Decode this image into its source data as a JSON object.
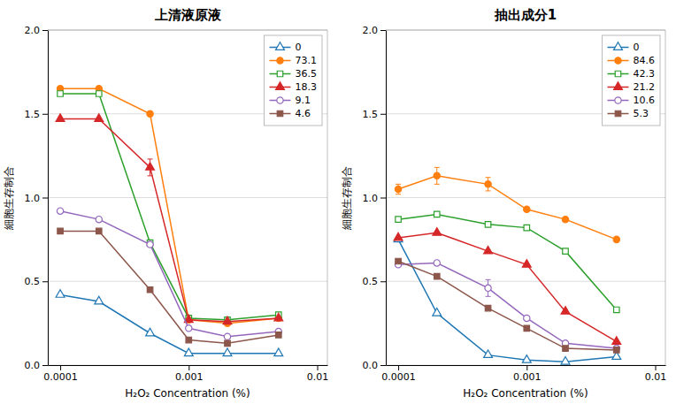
{
  "chart_data": [
    {
      "type": "line",
      "title": "上清液原液",
      "x_label": "H₂O₂ Concentration (%)",
      "y_label": "細胞生存制合",
      "x": [
        0.0001,
        0.0002,
        0.0005,
        0.001,
        0.002,
        0.005
      ],
      "series": [
        {
          "name": "0",
          "marker": "triangle-open",
          "values": [
            0.42,
            0.38,
            0.19,
            0.07,
            0.07,
            0.07
          ]
        },
        {
          "name": "73.1",
          "marker": "circle",
          "values": [
            1.65,
            1.65,
            1.5,
            0.27,
            0.25,
            0.28
          ]
        },
        {
          "name": "36.5",
          "marker": "square-open",
          "values": [
            1.62,
            1.62,
            0.73,
            0.28,
            0.27,
            0.3
          ]
        },
        {
          "name": "18.3",
          "marker": "triangle",
          "values": [
            1.47,
            1.47,
            1.18,
            0.27,
            0.26,
            0.28
          ],
          "errors": [
            0.0,
            0.0,
            0.05,
            0.0,
            0.0,
            0.0
          ]
        },
        {
          "name": "9.1",
          "marker": "circle-open",
          "values": [
            0.92,
            0.87,
            0.72,
            0.22,
            0.17,
            0.2
          ]
        },
        {
          "name": "4.6",
          "marker": "square",
          "values": [
            0.8,
            0.8,
            0.45,
            0.15,
            0.13,
            0.18
          ]
        }
      ],
      "log": "x",
      "xlim": [
        8e-05,
        0.012
      ],
      "xticks": [
        0.0001,
        0.001,
        0.01
      ],
      "ylim": [
        0,
        2
      ],
      "yticks": [
        {
          "value": 0,
          "label": "0.0"
        },
        0.5,
        {
          "value": 1,
          "label": "1.0"
        },
        1.5,
        {
          "value": 2,
          "label": "2.0"
        }
      ],
      "grid": true,
      "legend": "upper right"
    },
    {
      "type": "line",
      "title": "抽出成分1",
      "x_label": "H₂O₂ Concentration (%)",
      "y_label": "細胞生存制合",
      "x": [
        0.0001,
        0.0002,
        0.0005,
        0.001,
        0.002,
        0.005
      ],
      "series": [
        {
          "name": "0",
          "marker": "triangle-open",
          "values": [
            0.75,
            0.31,
            0.06,
            0.03,
            0.02,
            0.05
          ]
        },
        {
          "name": "84.6",
          "marker": "circle",
          "values": [
            1.05,
            1.13,
            1.08,
            0.93,
            0.87,
            0.75
          ],
          "errors": [
            0.03,
            0.05,
            0.04,
            0.0,
            0.0,
            0.0
          ]
        },
        {
          "name": "42.3",
          "marker": "square-open",
          "values": [
            0.87,
            0.9,
            0.84,
            0.82,
            0.68,
            0.33
          ]
        },
        {
          "name": "21.2",
          "marker": "triangle",
          "values": [
            0.76,
            0.79,
            0.68,
            0.6,
            0.32,
            0.14
          ]
        },
        {
          "name": "10.6",
          "marker": "circle-open",
          "values": [
            0.6,
            0.61,
            0.46,
            0.28,
            0.13,
            0.1
          ],
          "errors": [
            0.0,
            0.0,
            0.05,
            0.0,
            0.0,
            0.0
          ]
        },
        {
          "name": "5.3",
          "marker": "square",
          "values": [
            0.62,
            0.53,
            0.34,
            0.22,
            0.1,
            0.09
          ]
        }
      ],
      "log": "x",
      "xlim": [
        8e-05,
        0.012
      ],
      "xticks": [
        0.0001,
        0.001,
        0.01
      ],
      "ylim": [
        0,
        2
      ],
      "yticks": [
        {
          "value": 0,
          "label": "0.0"
        },
        0.5,
        {
          "value": 1,
          "label": "1.0"
        },
        1.5,
        {
          "value": 2,
          "label": "2.0"
        }
      ],
      "grid": true,
      "legend": "upper right"
    }
  ]
}
